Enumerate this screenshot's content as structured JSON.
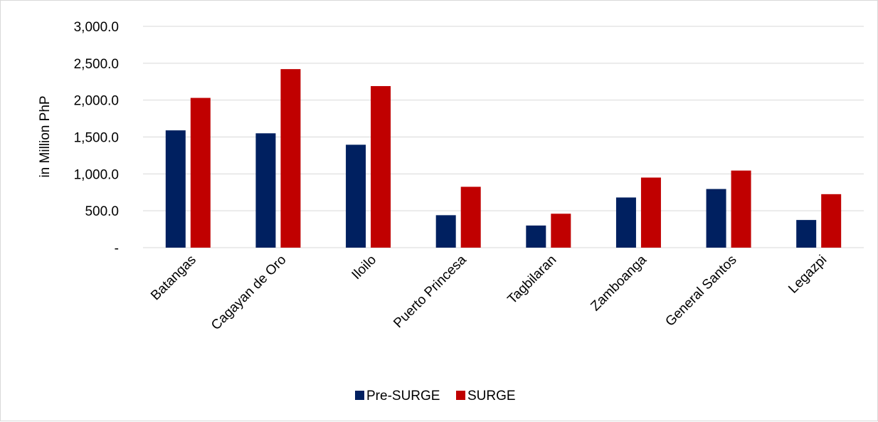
{
  "chart_data": {
    "type": "bar",
    "categories": [
      "Batangas",
      "Cagayan de Oro",
      "Iloilo",
      "Puerto Princesa",
      "Tagbilaran",
      "Zamboanga",
      "General Santos",
      "Legazpi"
    ],
    "series": [
      {
        "name": "Pre-SURGE",
        "color": "#002060",
        "values": [
          1590,
          1550,
          1395,
          440,
          300,
          680,
          795,
          375
        ]
      },
      {
        "name": "SURGE",
        "color": "#c00000",
        "values": [
          2030,
          2420,
          2190,
          825,
          460,
          950,
          1045,
          725
        ]
      }
    ],
    "title": "",
    "xlabel": "",
    "ylabel": "in Million PhP",
    "ylim": [
      0,
      3000
    ],
    "yticks": [
      0,
      500,
      1000,
      1500,
      2000,
      2500,
      3000
    ],
    "ytick_labels": [
      "-",
      "500.0",
      "1,000.0",
      "1,500.0",
      "2,000.0",
      "2,500.0",
      "3,000.0"
    ],
    "grid": true,
    "legend_position": "bottom"
  }
}
